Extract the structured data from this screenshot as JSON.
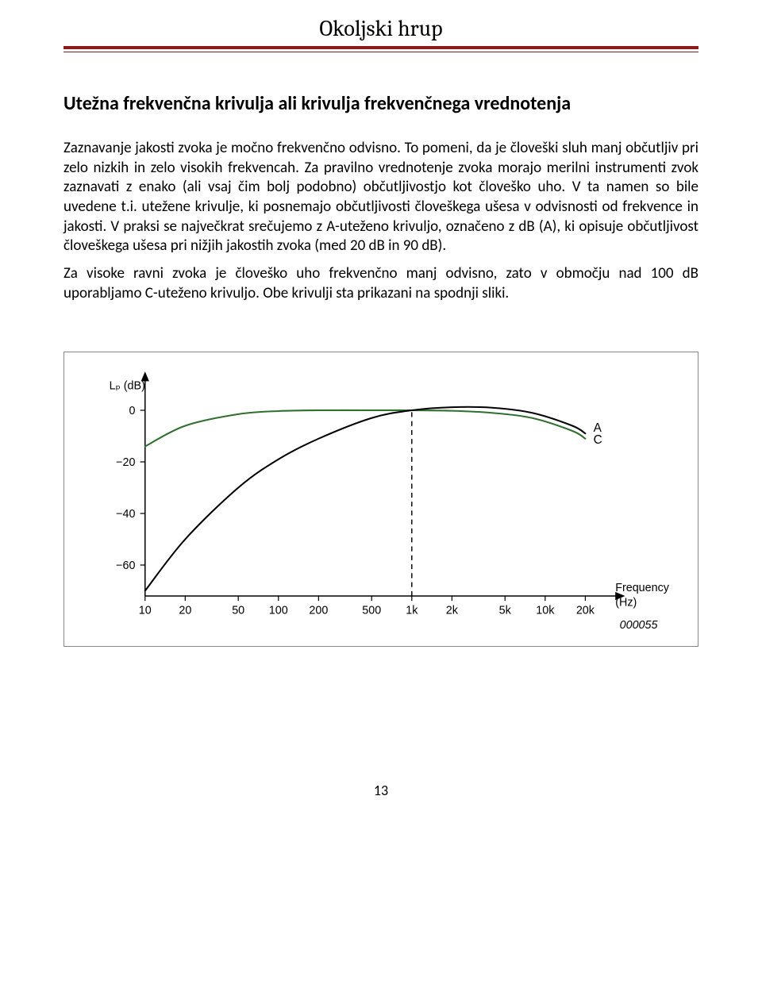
{
  "header": {
    "title": "Okoljski hrup",
    "rule_color": "#8b1a1a"
  },
  "section": {
    "heading": "Utežna frekvenčna krivulja ali krivulja frekvenčnega vrednotenja",
    "para1": "Zaznavanje jakosti zvoka je močno frekvenčno odvisno. To pomeni, da je človeški sluh manj občutljiv pri zelo nizkih in zelo visokih frekvencah. Za pravilno vrednotenje zvoka morajo merilni instrumenti zvok zaznavati z enako (ali vsaj čim bolj podobno) občutljivostjo kot človeško uho. V ta namen so bile uvedene t.i. utežene krivulje, ki posnemajo občutljivosti človeškega ušesa v odvisnosti od frekvence in jakosti. V praksi se največkrat srečujemo z A-uteženo krivuljo, označeno z dB (A), ki opisuje občutljivost človeškega ušesa pri nižjih jakostih zvoka (med 20 dB in 90 dB).",
    "para2": "Za visoke ravni zvoka je človeško uho frekvenčno manj odvisno, zato v območju nad 100 dB uporabljamo C-uteženo krivuljo. Obe krivulji sta prikazani na spodnji sliki."
  },
  "chart": {
    "type": "line",
    "background_color": "#ffffff",
    "axis_color": "#000000",
    "tick_color": "#000000",
    "dash_color": "#000000",
    "curve_a_color": "#000000",
    "curve_c_color": "#2f6f2f",
    "line_width_curve_a": 2.0,
    "line_width_curve_c": 2.0,
    "line_width_axis": 1.5,
    "ylabel": "Lₚ (dB)",
    "xlabel": "Frequency (Hz)",
    "ref_id": "000055",
    "y_ticks": [
      {
        "label": "0",
        "value": 0
      },
      {
        "label": "−20",
        "value": -20
      },
      {
        "label": "−40",
        "value": -40
      },
      {
        "label": "−60",
        "value": -60
      }
    ],
    "x_ticks": [
      {
        "label": "10",
        "value": 10
      },
      {
        "label": "20",
        "value": 20
      },
      {
        "label": "50",
        "value": 50
      },
      {
        "label": "100",
        "value": 100
      },
      {
        "label": "200",
        "value": 200
      },
      {
        "label": "500",
        "value": 500
      },
      {
        "label": "1k",
        "value": 1000
      },
      {
        "label": "2k",
        "value": 2000
      },
      {
        "label": "5k",
        "value": 5000
      },
      {
        "label": "10k",
        "value": 10000
      },
      {
        "label": "20k",
        "value": 20000
      }
    ],
    "xlim": [
      10,
      30000
    ],
    "ylim": [
      -72,
      10
    ],
    "curve_a": {
      "label": "A",
      "points": [
        {
          "f": 10,
          "db": -70
        },
        {
          "f": 20,
          "db": -50
        },
        {
          "f": 50,
          "db": -30
        },
        {
          "f": 100,
          "db": -19
        },
        {
          "f": 200,
          "db": -11
        },
        {
          "f": 500,
          "db": -3
        },
        {
          "f": 1000,
          "db": 0
        },
        {
          "f": 2000,
          "db": 1.2
        },
        {
          "f": 4000,
          "db": 1
        },
        {
          "f": 8000,
          "db": -1
        },
        {
          "f": 16000,
          "db": -6
        },
        {
          "f": 20000,
          "db": -9
        }
      ]
    },
    "curve_c": {
      "label": "C",
      "points": [
        {
          "f": 10,
          "db": -14
        },
        {
          "f": 20,
          "db": -6
        },
        {
          "f": 50,
          "db": -1.5
        },
        {
          "f": 100,
          "db": -0.3
        },
        {
          "f": 200,
          "db": 0
        },
        {
          "f": 500,
          "db": 0
        },
        {
          "f": 1000,
          "db": 0
        },
        {
          "f": 2000,
          "db": -0.2
        },
        {
          "f": 4000,
          "db": -1
        },
        {
          "f": 8000,
          "db": -3
        },
        {
          "f": 16000,
          "db": -8
        },
        {
          "f": 20000,
          "db": -11
        }
      ]
    },
    "reference_line_f": 1000
  },
  "page_number": "13"
}
